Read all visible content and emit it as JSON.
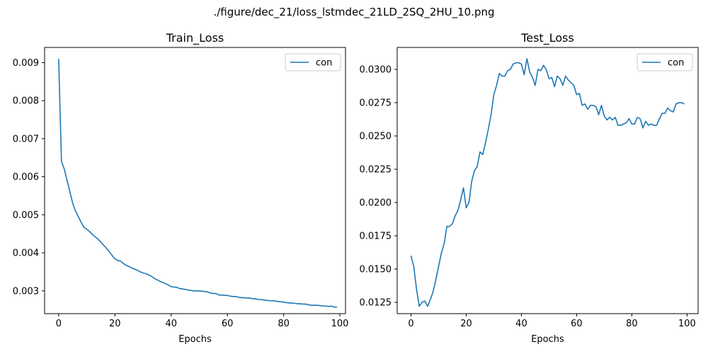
{
  "figure_title": "./figure/dec_21/loss_lstmdec_21LD_2SQ_2HU_10.png",
  "colors": {
    "series": "#1f77b4",
    "axis": "#000000",
    "legend_border": "#cccccc"
  },
  "chart_data": [
    {
      "type": "line",
      "title": "Train_Loss",
      "xlabel": "Epochs",
      "ylabel": "",
      "xlim": [
        -5,
        102
      ],
      "ylim": [
        0.0024,
        0.0094
      ],
      "xticks": [
        0,
        20,
        40,
        60,
        80,
        100
      ],
      "yticks": [
        0.003,
        0.004,
        0.005,
        0.006,
        0.007,
        0.008,
        0.009
      ],
      "ytick_labels": [
        "0.003",
        "0.004",
        "0.005",
        "0.006",
        "0.007",
        "0.008",
        "0.009"
      ],
      "legend": "top-right",
      "series": [
        {
          "name": "con",
          "x": [
            0,
            1,
            2,
            3,
            4,
            5,
            6,
            7,
            8,
            9,
            10,
            11,
            12,
            13,
            14,
            15,
            16,
            17,
            18,
            19,
            20,
            21,
            22,
            23,
            24,
            25,
            26,
            27,
            28,
            29,
            30,
            31,
            32,
            33,
            34,
            35,
            36,
            37,
            38,
            39,
            40,
            41,
            42,
            43,
            44,
            45,
            46,
            47,
            48,
            49,
            50,
            51,
            52,
            53,
            54,
            55,
            56,
            57,
            58,
            59,
            60,
            61,
            62,
            63,
            64,
            65,
            66,
            67,
            68,
            69,
            70,
            71,
            72,
            73,
            74,
            75,
            76,
            77,
            78,
            79,
            80,
            81,
            82,
            83,
            84,
            85,
            86,
            87,
            88,
            89,
            90,
            91,
            92,
            93,
            94,
            95,
            96,
            97,
            98,
            99
          ],
          "values": [
            0.0091,
            0.0064,
            0.0062,
            0.0059,
            0.0056,
            0.0053,
            0.0051,
            0.00495,
            0.0048,
            0.00467,
            0.00462,
            0.00456,
            0.00448,
            0.00442,
            0.00436,
            0.00428,
            0.0042,
            0.00412,
            0.00403,
            0.00393,
            0.00384,
            0.0038,
            0.00378,
            0.00372,
            0.00367,
            0.00364,
            0.0036,
            0.00357,
            0.00354,
            0.0035,
            0.00347,
            0.00345,
            0.00342,
            0.00338,
            0.00333,
            0.00329,
            0.00325,
            0.00322,
            0.00319,
            0.00315,
            0.00311,
            0.0031,
            0.00309,
            0.00306,
            0.00305,
            0.00304,
            0.00302,
            0.00301,
            0.003,
            0.003,
            0.003,
            0.00299,
            0.00298,
            0.00297,
            0.00294,
            0.00293,
            0.00293,
            0.00289,
            0.00289,
            0.00288,
            0.00288,
            0.00286,
            0.00285,
            0.00285,
            0.00283,
            0.00282,
            0.00282,
            0.00281,
            0.00281,
            0.00279,
            0.00279,
            0.00277,
            0.00277,
            0.00276,
            0.00275,
            0.00274,
            0.00274,
            0.00273,
            0.00272,
            0.00271,
            0.0027,
            0.00269,
            0.00268,
            0.00268,
            0.00267,
            0.00266,
            0.00266,
            0.00265,
            0.00265,
            0.00263,
            0.00262,
            0.00262,
            0.00262,
            0.00261,
            0.0026,
            0.0026,
            0.00259,
            0.0026,
            0.00257,
            0.00257
          ]
        }
      ]
    },
    {
      "type": "line",
      "title": "Test_Loss",
      "xlabel": "Epochs",
      "ylabel": "",
      "xlim": [
        -5,
        104
      ],
      "ylim": [
        0.01165,
        0.03165
      ],
      "xticks": [
        0,
        20,
        40,
        60,
        80,
        100
      ],
      "yticks": [
        0.0125,
        0.015,
        0.0175,
        0.02,
        0.0225,
        0.025,
        0.0275,
        0.03
      ],
      "ytick_labels": [
        "0.0125",
        "0.0150",
        "0.0175",
        "0.0200",
        "0.0225",
        "0.0250",
        "0.0275",
        "0.0300"
      ],
      "legend": "top-right",
      "series": [
        {
          "name": "con",
          "x": [
            0,
            1,
            2,
            3,
            4,
            5,
            6,
            7,
            8,
            9,
            10,
            11,
            12,
            13,
            14,
            15,
            16,
            17,
            18,
            19,
            20,
            21,
            22,
            23,
            24,
            25,
            26,
            27,
            28,
            29,
            30,
            31,
            32,
            33,
            34,
            35,
            36,
            37,
            38,
            39,
            40,
            41,
            42,
            43,
            44,
            45,
            46,
            47,
            48,
            49,
            50,
            51,
            52,
            53,
            54,
            55,
            56,
            57,
            58,
            59,
            60,
            61,
            62,
            63,
            64,
            65,
            66,
            67,
            68,
            69,
            70,
            71,
            72,
            73,
            74,
            75,
            76,
            77,
            78,
            79,
            80,
            81,
            82,
            83,
            84,
            85,
            86,
            87,
            88,
            89,
            90,
            91,
            92,
            93,
            94,
            95,
            96,
            97,
            98,
            99
          ],
          "values": [
            0.016,
            0.0152,
            0.0135,
            0.0122,
            0.0125,
            0.0126,
            0.0122,
            0.0127,
            0.0133,
            0.0142,
            0.0152,
            0.0162,
            0.0169,
            0.0182,
            0.0182,
            0.0184,
            0.019,
            0.0194,
            0.0202,
            0.0211,
            0.0196,
            0.02,
            0.0216,
            0.0224,
            0.0227,
            0.0238,
            0.0236,
            0.0245,
            0.0255,
            0.0266,
            0.0281,
            0.0288,
            0.0297,
            0.0295,
            0.0295,
            0.0299,
            0.03,
            0.0304,
            0.0305,
            0.0305,
            0.0304,
            0.0296,
            0.0308,
            0.0298,
            0.0294,
            0.0288,
            0.03,
            0.0299,
            0.0303,
            0.03,
            0.0293,
            0.0294,
            0.0287,
            0.0295,
            0.0293,
            0.0288,
            0.0295,
            0.0292,
            0.029,
            0.0288,
            0.0281,
            0.0282,
            0.0273,
            0.0274,
            0.027,
            0.0273,
            0.0273,
            0.0272,
            0.0266,
            0.0273,
            0.0265,
            0.0262,
            0.0264,
            0.0262,
            0.0264,
            0.0258,
            0.0258,
            0.0259,
            0.026,
            0.0263,
            0.0259,
            0.0259,
            0.0264,
            0.0263,
            0.0256,
            0.0261,
            0.0258,
            0.0259,
            0.0258,
            0.0258,
            0.0263,
            0.0267,
            0.0267,
            0.0271,
            0.0269,
            0.0268,
            0.0274,
            0.0275,
            0.0275,
            0.0274
          ]
        }
      ]
    }
  ]
}
